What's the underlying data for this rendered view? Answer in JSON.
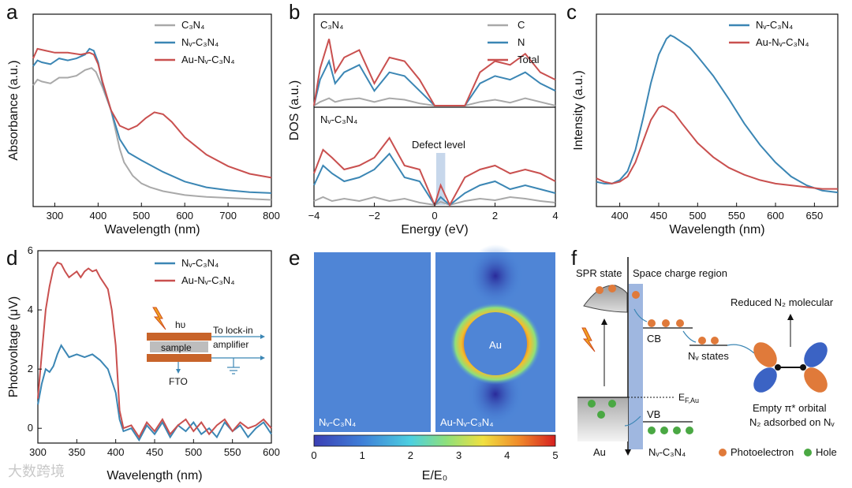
{
  "colors": {
    "gray": "#a9a9a9",
    "blue": "#3b86b4",
    "red": "#c9504f",
    "bandBlue": "#7f9fd6",
    "orange": "#e07a3a",
    "green": "#4aa843"
  },
  "panel_labels": [
    "a",
    "b",
    "c",
    "d",
    "e",
    "f"
  ],
  "panels": {
    "a": {
      "xlabel": "Wavelength (nm)",
      "ylabel": "Absorbance (a.u.)"
    },
    "b": {
      "xlabel": "Energy (eV)",
      "ylabel": "DOS (a.u.)",
      "top_label": "C₃N₄",
      "bottom_label": "Nᵥ-C₃N₄",
      "defect_label": "Defect level",
      "legend": [
        "C",
        "N",
        "Total"
      ]
    },
    "c": {
      "xlabel": "Wavelength (nm)",
      "ylabel": "Intensity (a.u.)"
    },
    "d": {
      "xlabel": "Wavelength (nm)",
      "ylabel": "Photovoltage (μV)",
      "inset": {
        "hv": "hυ",
        "sample": "sample",
        "to_lockin": "To lock-in",
        "amplifier": "amplifier",
        "fto": "FTO"
      }
    },
    "e": {
      "left_label": "Nᵥ-C₃N₄",
      "right_label": "Au-Nᵥ-C₃N₄",
      "au_label": "Au",
      "cbar_label": "E/E₀",
      "cbar_ticks": [
        "0",
        "1",
        "2",
        "3",
        "4",
        "5"
      ]
    },
    "f": {
      "spr": "SPR state",
      "scr": "Space charge region",
      "reduced": "Reduced N₂ molecular",
      "cb": "CB",
      "vb": "VB",
      "nv_states": "Nᵥ states",
      "ef": "E",
      "ef_sub": "F,Au",
      "empty_orbital": "Empty π* orbital",
      "adsorbed": "N₂ adsorbed on Nᵥ",
      "au": "Au",
      "nvc3n4": "Nᵥ-C₃N₄",
      "photoelectron": "Photoelectron",
      "hole": "Hole"
    }
  },
  "chart_data": [
    {
      "panel": "a",
      "type": "line",
      "xlim": [
        250,
        800
      ],
      "xticks": [
        300,
        400,
        500,
        600,
        700,
        800
      ],
      "ylim": [
        0,
        1
      ],
      "yticks": [],
      "xlabel": "Wavelength (nm)",
      "ylabel": "Absorbance (a.u.)",
      "series": [
        {
          "name": "C₃N₄",
          "color": "gray",
          "x": [
            250,
            260,
            270,
            290,
            310,
            330,
            350,
            370,
            385,
            395,
            410,
            430,
            440,
            450,
            460,
            480,
            500,
            520,
            550,
            600,
            650,
            700,
            750,
            800
          ],
          "y": [
            0.63,
            0.66,
            0.65,
            0.64,
            0.67,
            0.67,
            0.68,
            0.71,
            0.72,
            0.7,
            0.62,
            0.5,
            0.4,
            0.3,
            0.23,
            0.16,
            0.12,
            0.1,
            0.08,
            0.06,
            0.05,
            0.045,
            0.04,
            0.035
          ]
        },
        {
          "name": "Nᵥ-C₃N₄",
          "color": "blue",
          "x": [
            250,
            260,
            270,
            290,
            310,
            330,
            350,
            370,
            380,
            390,
            400,
            410,
            430,
            450,
            470,
            500,
            550,
            600,
            650,
            700,
            750,
            800
          ],
          "y": [
            0.73,
            0.76,
            0.75,
            0.74,
            0.77,
            0.76,
            0.77,
            0.79,
            0.82,
            0.81,
            0.75,
            0.64,
            0.5,
            0.35,
            0.28,
            0.24,
            0.18,
            0.13,
            0.1,
            0.085,
            0.075,
            0.07
          ]
        },
        {
          "name": "Au-Nᵥ-C₃N₄",
          "color": "red",
          "x": [
            250,
            260,
            280,
            300,
            330,
            360,
            380,
            390,
            400,
            410,
            430,
            450,
            470,
            490,
            510,
            530,
            550,
            570,
            600,
            650,
            700,
            750,
            800
          ],
          "y": [
            0.77,
            0.82,
            0.81,
            0.8,
            0.8,
            0.79,
            0.8,
            0.79,
            0.74,
            0.65,
            0.5,
            0.42,
            0.4,
            0.42,
            0.46,
            0.49,
            0.48,
            0.44,
            0.36,
            0.27,
            0.21,
            0.17,
            0.15
          ]
        }
      ]
    },
    {
      "panel": "b",
      "type": "line",
      "xlim": [
        -4,
        4
      ],
      "xticks": [
        -4,
        -2,
        0,
        2,
        4
      ],
      "ylim_each": [
        0,
        1
      ],
      "defect_range": [
        0.05,
        0.35
      ],
      "series_top": [
        {
          "name": "C",
          "color": "gray",
          "x": [
            -4,
            -3.8,
            -3.5,
            -3.3,
            -3,
            -2.5,
            -2,
            -1.5,
            -1,
            -0.5,
            0,
            0.5,
            1,
            1.5,
            2,
            2.5,
            3,
            3.5,
            4
          ],
          "y": [
            0,
            0.05,
            0.1,
            0.05,
            0.08,
            0.1,
            0.05,
            0.1,
            0.08,
            0.03,
            0,
            0,
            0,
            0.05,
            0.08,
            0.04,
            0.1,
            0.05,
            0
          ]
        },
        {
          "name": "N",
          "color": "blue",
          "x": [
            -4,
            -3.8,
            -3.5,
            -3.3,
            -3,
            -2.5,
            -2,
            -1.5,
            -1,
            -0.5,
            0,
            0.5,
            1,
            1.5,
            2,
            2.5,
            3,
            3.5,
            4
          ],
          "y": [
            0,
            0.35,
            0.6,
            0.3,
            0.45,
            0.55,
            0.2,
            0.45,
            0.4,
            0.2,
            0,
            0,
            0,
            0.3,
            0.4,
            0.35,
            0.45,
            0.3,
            0.2
          ]
        },
        {
          "name": "Total",
          "color": "red",
          "x": [
            -4,
            -3.8,
            -3.5,
            -3.3,
            -3,
            -2.5,
            -2,
            -1.5,
            -1,
            -0.5,
            0,
            0.5,
            1,
            1.5,
            2,
            2.5,
            3,
            3.5,
            4
          ],
          "y": [
            0,
            0.5,
            0.9,
            0.45,
            0.65,
            0.75,
            0.3,
            0.65,
            0.6,
            0.35,
            0,
            0,
            0,
            0.45,
            0.6,
            0.55,
            0.7,
            0.45,
            0.35
          ]
        }
      ],
      "series_bottom": [
        {
          "name": "C",
          "color": "gray",
          "x": [
            -4,
            -3.7,
            -3.4,
            -3,
            -2.5,
            -2,
            -1.5,
            -1,
            -0.5,
            0,
            0.2,
            0.5,
            1,
            1.5,
            2,
            2.5,
            3,
            3.5,
            4
          ],
          "y": [
            0.05,
            0.1,
            0.05,
            0.08,
            0.05,
            0.1,
            0.05,
            0.08,
            0.03,
            0,
            0.04,
            0,
            0.05,
            0.08,
            0.06,
            0.1,
            0.08,
            0.05,
            0.03
          ]
        },
        {
          "name": "N",
          "color": "blue",
          "x": [
            -4,
            -3.7,
            -3.4,
            -3,
            -2.5,
            -2,
            -1.5,
            -1,
            -0.5,
            0,
            0.2,
            0.5,
            1,
            1.5,
            2,
            2.5,
            3,
            3.5,
            4
          ],
          "y": [
            0.25,
            0.5,
            0.4,
            0.3,
            0.35,
            0.45,
            0.65,
            0.35,
            0.3,
            0,
            0.1,
            0,
            0.15,
            0.25,
            0.3,
            0.2,
            0.25,
            0.2,
            0.15
          ]
        },
        {
          "name": "Total",
          "color": "red",
          "x": [
            -4,
            -3.7,
            -3.4,
            -3,
            -2.5,
            -2,
            -1.5,
            -1,
            -0.5,
            0,
            0.2,
            0.5,
            1,
            1.5,
            2,
            2.5,
            3,
            3.5,
            4
          ],
          "y": [
            0.4,
            0.7,
            0.6,
            0.45,
            0.5,
            0.6,
            0.85,
            0.5,
            0.45,
            0,
            0.25,
            0,
            0.35,
            0.45,
            0.5,
            0.4,
            0.45,
            0.4,
            0.3
          ]
        }
      ]
    },
    {
      "panel": "c",
      "type": "line",
      "xlim": [
        370,
        680
      ],
      "xticks": [
        400,
        450,
        500,
        550,
        600,
        650
      ],
      "ylim": [
        0,
        1
      ],
      "series": [
        {
          "name": "Nᵥ-C₃N₄",
          "color": "blue",
          "x": [
            370,
            380,
            390,
            400,
            410,
            420,
            430,
            440,
            450,
            460,
            465,
            470,
            480,
            490,
            500,
            520,
            540,
            560,
            580,
            600,
            620,
            640,
            660,
            680
          ],
          "y": [
            0.14,
            0.13,
            0.13,
            0.15,
            0.2,
            0.32,
            0.5,
            0.7,
            0.86,
            0.95,
            0.97,
            0.96,
            0.93,
            0.9,
            0.85,
            0.74,
            0.61,
            0.47,
            0.35,
            0.25,
            0.17,
            0.12,
            0.09,
            0.08
          ]
        },
        {
          "name": "Au-Nᵥ-C₃N₄",
          "color": "red",
          "x": [
            370,
            380,
            390,
            400,
            410,
            420,
            430,
            440,
            450,
            455,
            460,
            470,
            480,
            500,
            520,
            540,
            560,
            580,
            600,
            620,
            640,
            660,
            680
          ],
          "y": [
            0.16,
            0.14,
            0.13,
            0.14,
            0.17,
            0.25,
            0.37,
            0.49,
            0.56,
            0.57,
            0.56,
            0.53,
            0.47,
            0.36,
            0.28,
            0.22,
            0.18,
            0.15,
            0.13,
            0.12,
            0.11,
            0.1,
            0.1
          ]
        }
      ]
    },
    {
      "panel": "d",
      "type": "line",
      "xlim": [
        300,
        600
      ],
      "xticks": [
        300,
        350,
        400,
        450,
        500,
        550,
        600
      ],
      "ylim": [
        -0.5,
        6
      ],
      "yticks": [
        0,
        2,
        4,
        6
      ],
      "series": [
        {
          "name": "Nᵥ-C₃N₄",
          "color": "blue",
          "x": [
            300,
            305,
            310,
            315,
            320,
            325,
            330,
            335,
            340,
            350,
            360,
            370,
            380,
            390,
            400,
            405,
            410,
            420,
            430,
            440,
            450,
            460,
            470,
            480,
            490,
            500,
            510,
            520,
            530,
            540,
            550,
            560,
            570,
            580,
            590,
            600
          ],
          "y": [
            0.8,
            1.5,
            2.0,
            1.9,
            2.1,
            2.5,
            2.8,
            2.6,
            2.4,
            2.5,
            2.4,
            2.5,
            2.3,
            2.0,
            1.2,
            0.3,
            -0.1,
            0.0,
            -0.4,
            0.1,
            -0.2,
            0.2,
            -0.3,
            0.1,
            -0.1,
            0.2,
            -0.2,
            0.0,
            -0.3,
            0.2,
            -0.1,
            0.1,
            -0.3,
            0.0,
            0.2,
            -0.2
          ]
        },
        {
          "name": "Au-Nᵥ-C₃N₄",
          "color": "red",
          "x": [
            300,
            305,
            310,
            315,
            320,
            325,
            330,
            335,
            340,
            345,
            350,
            355,
            360,
            365,
            370,
            375,
            380,
            385,
            390,
            395,
            400,
            405,
            410,
            420,
            430,
            440,
            450,
            460,
            470,
            480,
            490,
            500,
            510,
            520,
            530,
            540,
            550,
            560,
            570,
            580,
            590,
            600
          ],
          "y": [
            1.0,
            2.5,
            4.0,
            4.8,
            5.4,
            5.6,
            5.55,
            5.3,
            5.1,
            5.2,
            5.3,
            5.1,
            5.3,
            5.4,
            5.3,
            5.35,
            5.1,
            4.9,
            4.7,
            4.0,
            2.8,
            0.6,
            0.0,
            0.1,
            -0.3,
            0.2,
            -0.1,
            0.3,
            -0.2,
            0.1,
            0.3,
            -0.1,
            0.2,
            -0.2,
            0.1,
            0.3,
            -0.1,
            0.2,
            0.0,
            0.1,
            0.3,
            0.0
          ]
        }
      ]
    },
    {
      "panel": "e",
      "type": "heatmap",
      "colorbar_range": [
        0,
        5
      ],
      "colorbar_ticks": [
        0,
        1,
        2,
        3,
        4,
        5
      ],
      "colorbar_label": "E/E₀"
    }
  ],
  "watermark": "大数跨境"
}
